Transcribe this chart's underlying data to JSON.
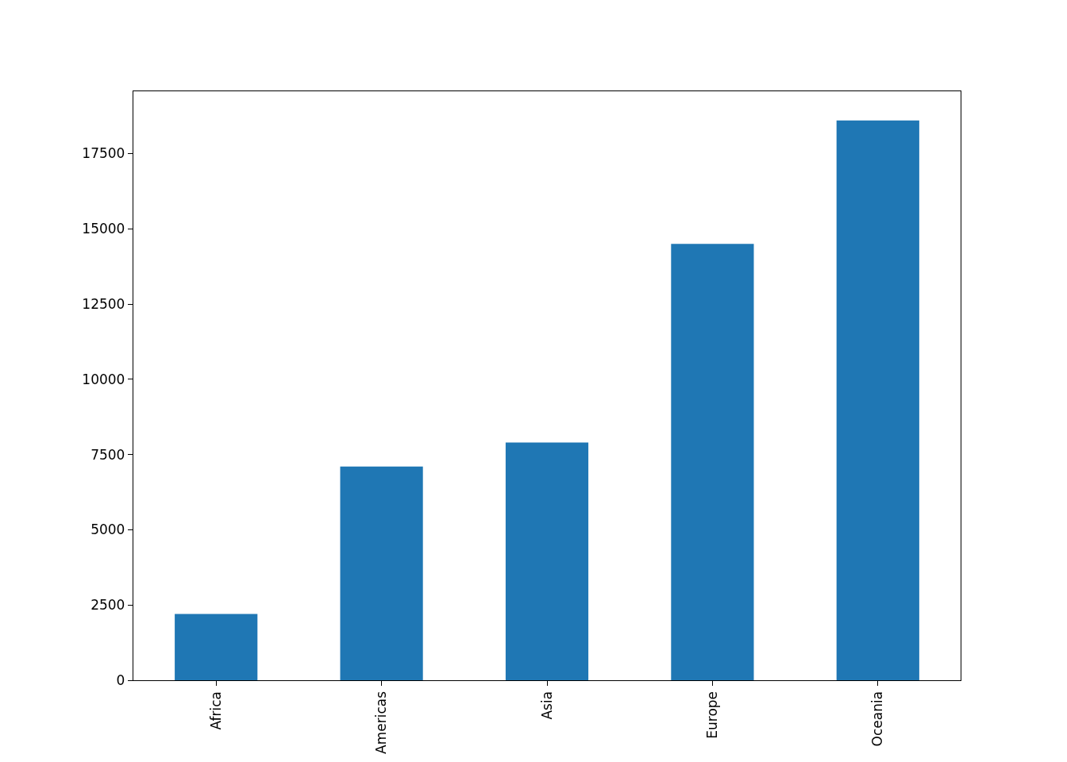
{
  "chart_data": {
    "type": "bar",
    "categories": [
      "Africa",
      "Americas",
      "Asia",
      "Europe",
      "Oceania"
    ],
    "values": [
      2200,
      7100,
      7900,
      14500,
      18600
    ],
    "color": "#1f77b4",
    "ylim": [
      0,
      19570
    ],
    "yticks": [
      0,
      2500,
      5000,
      7500,
      10000,
      12500,
      15000,
      17500
    ]
  }
}
